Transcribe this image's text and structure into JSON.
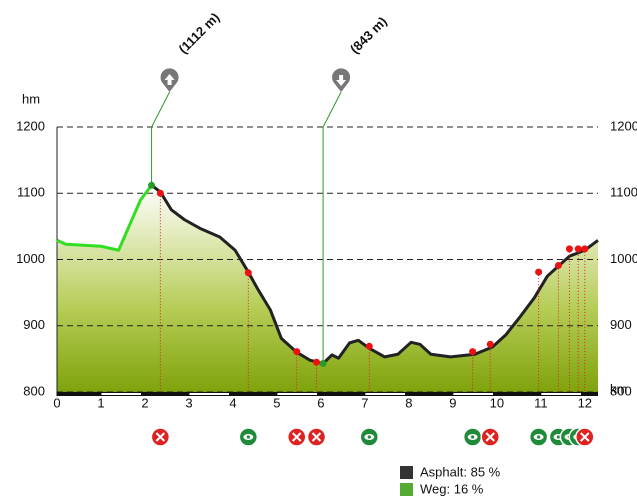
{
  "chart_data": {
    "type": "elevation-profile",
    "y_label": "hm",
    "x_label": "km",
    "xlim": [
      0,
      12.3
    ],
    "ylim": [
      800,
      1200
    ],
    "xticks": [
      0,
      1,
      2,
      3,
      4,
      5,
      6,
      7,
      8,
      9,
      10,
      11,
      12
    ],
    "yticks": [
      800,
      900,
      1000,
      1100,
      1200
    ],
    "grid": true,
    "series": [
      {
        "color": "#33dd22",
        "x": [
          0,
          0.2,
          1.0,
          1.4,
          1.5,
          1.65,
          1.9,
          2.15
        ],
        "values": [
          1029,
          1023,
          1020,
          1014,
          1029,
          1052,
          1090,
          1112
        ]
      },
      {
        "color": "#222222",
        "x": [
          2.15,
          2.35,
          2.6,
          2.9,
          3.25,
          3.7,
          4.05,
          4.35,
          4.55,
          4.85,
          5.1,
          5.45,
          5.75,
          6.05,
          6.25,
          6.4,
          6.65,
          6.85,
          7.1,
          7.45,
          7.75,
          8.05,
          8.25,
          8.5,
          8.95,
          9.5,
          9.9,
          10.2,
          10.5,
          10.85,
          11.15,
          11.45,
          11.65,
          12.0,
          12.3
        ],
        "values": [
          1112,
          1102,
          1075,
          1060,
          1047,
          1034,
          1014,
          981,
          957,
          924,
          881,
          860,
          848,
          843,
          856,
          851,
          874,
          878,
          866,
          853,
          857,
          875,
          872,
          857,
          853,
          857,
          868,
          886,
          911,
          942,
          975,
          993,
          1005,
          1014,
          1029
        ]
      }
    ],
    "annotations": [
      {
        "x": 2.15,
        "value": 1112,
        "text": "(1112 m)",
        "icon": "up"
      },
      {
        "x": 6.05,
        "value": 843,
        "text": "(843 m)",
        "icon": "down"
      }
    ],
    "pois": [
      {
        "x": 2.35,
        "value": 1100,
        "kind": "food"
      },
      {
        "x": 4.35,
        "value": 980,
        "kind": "view"
      },
      {
        "x": 5.45,
        "value": 861,
        "kind": "food"
      },
      {
        "x": 5.9,
        "value": 845,
        "kind": "food"
      },
      {
        "x": 7.1,
        "value": 869,
        "kind": "view"
      },
      {
        "x": 9.45,
        "value": 861,
        "kind": "view"
      },
      {
        "x": 9.85,
        "value": 872,
        "kind": "food"
      },
      {
        "x": 10.95,
        "value": 981,
        "kind": "view"
      },
      {
        "x": 11.4,
        "value": 991,
        "kind": "view"
      },
      {
        "x": 11.65,
        "value": 1016,
        "kind": "view"
      },
      {
        "x": 11.85,
        "value": 1016,
        "kind": "view"
      },
      {
        "x": 12.0,
        "value": 1016,
        "kind": "food"
      }
    ],
    "legend": [
      {
        "label": "Asphalt: 85 %",
        "color": "#333333"
      },
      {
        "label": "Weg: 16 %",
        "color": "#55aa33"
      }
    ]
  }
}
